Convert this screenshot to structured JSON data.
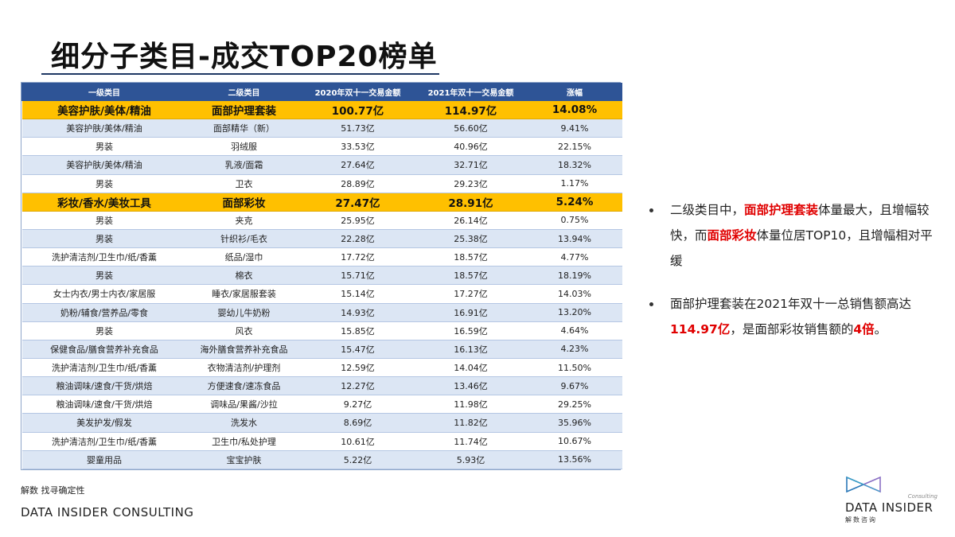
{
  "title": "细分子类目-成交TOP20榜单",
  "table": {
    "headers": [
      "一级类目",
      "二级类目",
      "2020年双十一交易金额",
      "2021年双十一交易金额",
      "涨幅"
    ],
    "rows": [
      {
        "l1": "美容护肤/美体/精油",
        "l2": "面部护理套装",
        "v2020": "100.77亿",
        "v2021": "114.97亿",
        "growth": "14.08%",
        "highlight": true
      },
      {
        "l1": "美容护肤/美体/精油",
        "l2": "面部精华（新）",
        "v2020": "51.73亿",
        "v2021": "56.60亿",
        "growth": "9.41%"
      },
      {
        "l1": "男装",
        "l2": "羽绒服",
        "v2020": "33.53亿",
        "v2021": "40.96亿",
        "growth": "22.15%"
      },
      {
        "l1": "美容护肤/美体/精油",
        "l2": "乳液/面霜",
        "v2020": "27.64亿",
        "v2021": "32.71亿",
        "growth": "18.32%"
      },
      {
        "l1": "男装",
        "l2": "卫衣",
        "v2020": "28.89亿",
        "v2021": "29.23亿",
        "growth": "1.17%"
      },
      {
        "l1": "彩妆/香水/美妆工具",
        "l2": "面部彩妆",
        "v2020": "27.47亿",
        "v2021": "28.91亿",
        "growth": "5.24%",
        "highlight": true
      },
      {
        "l1": "男装",
        "l2": "夹克",
        "v2020": "25.95亿",
        "v2021": "26.14亿",
        "growth": "0.75%"
      },
      {
        "l1": "男装",
        "l2": "针织衫/毛衣",
        "v2020": "22.28亿",
        "v2021": "25.38亿",
        "growth": "13.94%"
      },
      {
        "l1": "洗护清洁剂/卫生巾/纸/香薰",
        "l2": "纸品/湿巾",
        "v2020": "17.72亿",
        "v2021": "18.57亿",
        "growth": "4.77%"
      },
      {
        "l1": "男装",
        "l2": "棉衣",
        "v2020": "15.71亿",
        "v2021": "18.57亿",
        "growth": "18.19%"
      },
      {
        "l1": "女士内衣/男士内衣/家居服",
        "l2": "睡衣/家居服套装",
        "v2020": "15.14亿",
        "v2021": "17.27亿",
        "growth": "14.03%"
      },
      {
        "l1": "奶粉/辅食/营养品/零食",
        "l2": "婴幼儿牛奶粉",
        "v2020": "14.93亿",
        "v2021": "16.91亿",
        "growth": "13.20%"
      },
      {
        "l1": "男装",
        "l2": "风衣",
        "v2020": "15.85亿",
        "v2021": "16.59亿",
        "growth": "4.64%"
      },
      {
        "l1": "保健食品/膳食营养补充食品",
        "l2": "海外膳食营养补充食品",
        "v2020": "15.47亿",
        "v2021": "16.13亿",
        "growth": "4.23%"
      },
      {
        "l1": "洗护清洁剂/卫生巾/纸/香薰",
        "l2": "衣物清洁剂/护理剂",
        "v2020": "12.59亿",
        "v2021": "14.04亿",
        "growth": "11.50%"
      },
      {
        "l1": "粮油调味/速食/干货/烘焙",
        "l2": "方便速食/速冻食品",
        "v2020": "12.27亿",
        "v2021": "13.46亿",
        "growth": "9.67%"
      },
      {
        "l1": "粮油调味/速食/干货/烘焙",
        "l2": "调味品/果酱/沙拉",
        "v2020": "9.27亿",
        "v2021": "11.98亿",
        "growth": "29.25%"
      },
      {
        "l1": "美发护发/假发",
        "l2": "洗发水",
        "v2020": "8.69亿",
        "v2021": "11.82亿",
        "growth": "35.96%"
      },
      {
        "l1": "洗护清洁剂/卫生巾/纸/香薰",
        "l2": "卫生巾/私处护理",
        "v2020": "10.61亿",
        "v2021": "11.74亿",
        "growth": "10.67%"
      },
      {
        "l1": "婴童用品",
        "l2": "宝宝护肤",
        "v2020": "5.22亿",
        "v2021": "5.93亿",
        "growth": "13.56%"
      }
    ]
  },
  "bullets": [
    [
      {
        "text": "二级类目中，"
      },
      {
        "text": "面部护理套装",
        "red": true
      },
      {
        "text": "体量最大，且增幅较快，而"
      },
      {
        "text": "面部彩妆",
        "red": true
      },
      {
        "text": "体量位居TOP10，且增幅相对平缓"
      }
    ],
    [
      {
        "text": "面部护理套装在2021年双十一总销售额高达"
      },
      {
        "text": "114.97亿",
        "red": true
      },
      {
        "text": "，是面部彩妆销售额的"
      },
      {
        "text": "4倍",
        "red": true
      },
      {
        "text": "。"
      }
    ]
  ],
  "footer": {
    "tagline": "解数 找寻确定性",
    "company": "DATA INSIDER CONSULTING"
  },
  "logo": {
    "consulting": "Consulting",
    "name": "DATA INSIDER",
    "sub": "解数咨询",
    "icon": "bow-tie-logo-icon"
  },
  "colors": {
    "header_bg": "#2e5496",
    "highlight_bg": "#ffc000",
    "stripe_bg": "#dce6f4",
    "accent_red": "#e00000"
  }
}
